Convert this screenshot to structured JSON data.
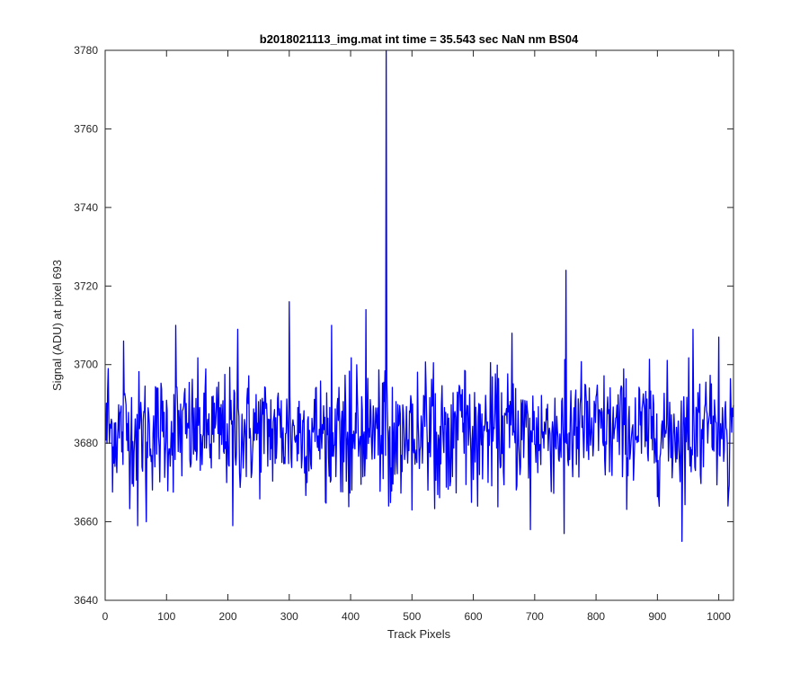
{
  "chart_data": {
    "type": "line",
    "title": "b2018021113_img.mat int time = 35.543 sec  NaN nm BS04",
    "xlabel": "Track Pixels",
    "ylabel": "Signal (ADU) at pixel 693",
    "xlim": [
      0,
      1024
    ],
    "ylim": [
      3640,
      3780
    ],
    "xticks": [
      0,
      100,
      200,
      300,
      400,
      500,
      600,
      700,
      800,
      900,
      1000
    ],
    "yticks": [
      3640,
      3660,
      3680,
      3700,
      3720,
      3740,
      3760,
      3780
    ],
    "grid": false,
    "line_color": "#0000ff",
    "series": [
      {
        "x_start": 1,
        "x_step": 1,
        "noise_baseline": 3683,
        "noise_range": [
          3660,
          3706
        ],
        "spikes": [
          {
            "x": 5,
            "y": 3699
          },
          {
            "x": 30,
            "y": 3706
          },
          {
            "x": 53,
            "y": 3659
          },
          {
            "x": 67,
            "y": 3660
          },
          {
            "x": 115,
            "y": 3710
          },
          {
            "x": 208,
            "y": 3659
          },
          {
            "x": 216,
            "y": 3709
          },
          {
            "x": 300,
            "y": 3716
          },
          {
            "x": 369,
            "y": 3710
          },
          {
            "x": 425,
            "y": 3714
          },
          {
            "x": 458,
            "y": 3780
          },
          {
            "x": 462,
            "y": 3664
          },
          {
            "x": 500,
            "y": 3663
          },
          {
            "x": 663,
            "y": 3708
          },
          {
            "x": 693,
            "y": 3658
          },
          {
            "x": 748,
            "y": 3657
          },
          {
            "x": 751,
            "y": 3724
          },
          {
            "x": 940,
            "y": 3655
          },
          {
            "x": 958,
            "y": 3709
          },
          {
            "x": 1000,
            "y": 3707
          },
          {
            "x": 1015,
            "y": 3664
          }
        ]
      }
    ]
  }
}
